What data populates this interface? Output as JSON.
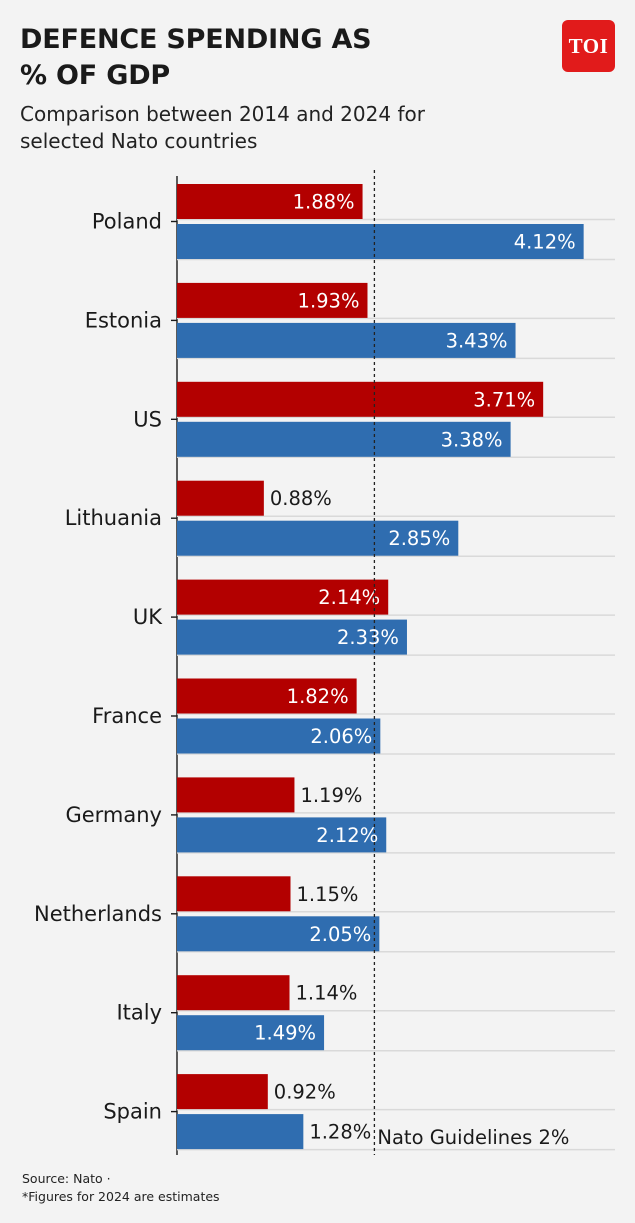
{
  "header": {
    "title_line1": "DEFENCE SPENDING AS",
    "title_line2": "% OF GDP",
    "subtitle_line1": "Comparison between 2014 and 2024 for",
    "subtitle_line2": "selected Nato countries",
    "logo_text": "TOI"
  },
  "footer": {
    "source": "Source: Nato ·",
    "note": "*Figures for 2024 are estimates"
  },
  "colors": {
    "series_2014": "#b30000",
    "series_2024": "#2f6db0",
    "logo": "#e11b1b",
    "background": "#f3f3f3"
  },
  "chart_data": {
    "type": "bar",
    "orientation": "horizontal",
    "categories": [
      "Poland",
      "Estonia",
      "US",
      "Lithuania",
      "UK",
      "France",
      "Germany",
      "Netherlands",
      "Italy",
      "Spain"
    ],
    "series": [
      {
        "year": "2014",
        "values": [
          1.88,
          1.93,
          3.71,
          0.88,
          2.14,
          1.82,
          1.19,
          1.15,
          1.14,
          0.92
        ],
        "labels": [
          "1.88%",
          "1.93%",
          "3.71%",
          "0.88%",
          "2.14%",
          "1.82%",
          "1.19%",
          "1.15%",
          "1.14%",
          "0.92%"
        ]
      },
      {
        "year": "2024",
        "values": [
          4.12,
          3.43,
          3.38,
          2.85,
          2.33,
          2.06,
          2.12,
          2.05,
          1.49,
          1.28
        ],
        "labels": [
          "4.12%",
          "3.43%",
          "3.38%",
          "2.85%",
          "2.33%",
          "2.06%",
          "2.12%",
          "2.05%",
          "1.49%",
          "1.28%"
        ]
      }
    ],
    "reference_line": {
      "value": 2,
      "label": "Nato Guidelines 2%"
    },
    "xlim": [
      0,
      4.3
    ],
    "grid": true
  }
}
